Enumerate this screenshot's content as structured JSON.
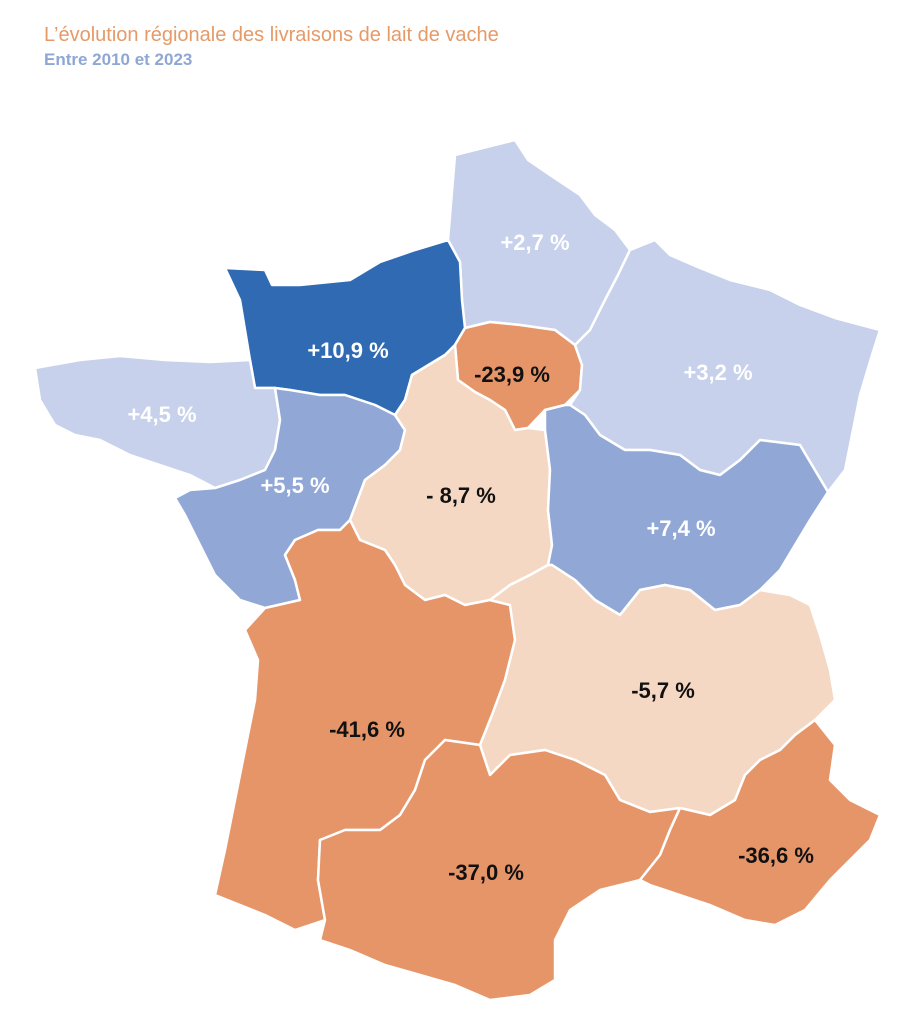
{
  "title": "L’évolution régionale des livraisons de lait de vache",
  "subtitle": "Entre 2010 et 2023",
  "colors": {
    "dark_blue": "#2f6ab3",
    "mid_blue": "#91a8d6",
    "light_blue": "#c7d1eb",
    "light_orange": "#f5d8c3",
    "orange": "#e69569",
    "label_light": "#ffffff",
    "label_dark": "#111111"
  },
  "regions": [
    {
      "id": "hauts-de-france",
      "label": "+2,7 %",
      "value": 2.7,
      "color": "light_blue",
      "text_color": "label_light"
    },
    {
      "id": "normandie",
      "label": "+10,9 %",
      "value": 10.9,
      "color": "dark_blue",
      "text_color": "label_light"
    },
    {
      "id": "ile-de-france",
      "label": "-23,9 %",
      "value": -23.9,
      "color": "orange",
      "text_color": "label_dark"
    },
    {
      "id": "grand-est",
      "label": "+3,2 %",
      "value": 3.2,
      "color": "light_blue",
      "text_color": "label_light"
    },
    {
      "id": "bretagne",
      "label": "+4,5 %",
      "value": 4.5,
      "color": "light_blue",
      "text_color": "label_light"
    },
    {
      "id": "pays-de-la-loire",
      "label": "+5,5 %",
      "value": 5.5,
      "color": "mid_blue",
      "text_color": "label_light"
    },
    {
      "id": "centre-val-de-loire",
      "label": "- 8,7 %",
      "value": -8.7,
      "color": "light_orange",
      "text_color": "label_dark"
    },
    {
      "id": "bourgogne-franche-comte",
      "label": "+7,4 %",
      "value": 7.4,
      "color": "mid_blue",
      "text_color": "label_light"
    },
    {
      "id": "nouvelle-aquitaine",
      "label": "-41,6 %",
      "value": -41.6,
      "color": "orange",
      "text_color": "label_dark"
    },
    {
      "id": "auvergne-rhone-alpes",
      "label": "-5,7 %",
      "value": -5.7,
      "color": "light_orange",
      "text_color": "label_dark"
    },
    {
      "id": "occitanie",
      "label": "-37,0 %",
      "value": -37.0,
      "color": "orange",
      "text_color": "label_dark"
    },
    {
      "id": "provence-alpes-cote-dazur",
      "label": "-36,6 %",
      "value": -36.6,
      "color": "orange",
      "text_color": "label_dark"
    }
  ]
}
